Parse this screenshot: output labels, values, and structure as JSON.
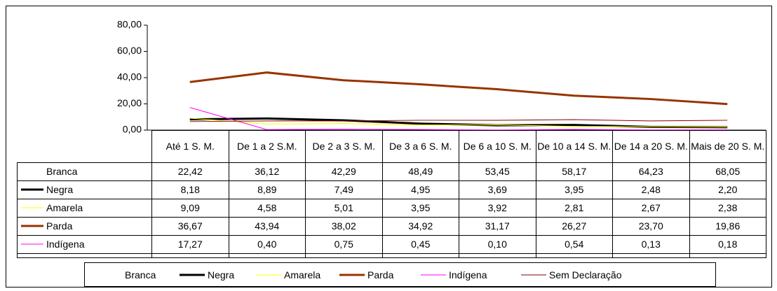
{
  "chart_data": {
    "type": "line",
    "categories": [
      "Até 1 S. M.",
      "De 1 a 2 S.M.",
      "De 2 a 3 S. M.",
      "De 3 a 6 S. M.",
      "De 6 a 10 S. M.",
      "De 10 a 14 S. M.",
      "De 14 a 20 S. M.",
      "Mais de 20 S. M."
    ],
    "ylim": [
      0,
      80
    ],
    "yticks": [
      {
        "value": 0,
        "label": "0,00"
      },
      {
        "value": 20,
        "label": "20,00"
      },
      {
        "value": 40,
        "label": "40,00"
      },
      {
        "value": 60,
        "label": "60,00"
      },
      {
        "value": 80,
        "label": "80,00"
      }
    ],
    "series": [
      {
        "name": "Branca",
        "color": "#ffffff",
        "line_width": 1,
        "values": [
          22.42,
          36.12,
          42.29,
          48.49,
          53.45,
          58.17,
          64.23,
          68.05
        ],
        "value_labels": [
          "22,42",
          "36,12",
          "42,29",
          "48,49",
          "53,45",
          "58,17",
          "64,23",
          "68,05"
        ]
      },
      {
        "name": "Negra",
        "color": "#000000",
        "line_width": 3,
        "values": [
          8.18,
          8.89,
          7.49,
          4.95,
          3.69,
          3.95,
          2.48,
          2.2
        ],
        "value_labels": [
          "8,18",
          "8,89",
          "7,49",
          "4,95",
          "3,69",
          "3,95",
          "2,48",
          "2,20"
        ]
      },
      {
        "name": "Amarela",
        "color": "#ffff00",
        "line_width": 1,
        "values": [
          9.09,
          4.58,
          5.01,
          3.95,
          3.92,
          2.81,
          2.67,
          2.38
        ],
        "value_labels": [
          "9,09",
          "4,58",
          "5,01",
          "3,95",
          "3,92",
          "2,81",
          "2,67",
          "2,38"
        ]
      },
      {
        "name": "Parda",
        "color": "#993300",
        "line_width": 3,
        "values": [
          36.67,
          43.94,
          38.02,
          34.92,
          31.17,
          26.27,
          23.7,
          19.86
        ],
        "value_labels": [
          "36,67",
          "43,94",
          "38,02",
          "34,92",
          "31,17",
          "26,27",
          "23,70",
          "19,86"
        ]
      },
      {
        "name": "Indígena",
        "color": "#ff00ff",
        "line_width": 1,
        "values": [
          17.27,
          0.4,
          0.75,
          0.45,
          0.1,
          0.54,
          0.13,
          0.18
        ],
        "value_labels": [
          "17,27",
          "0,40",
          "0,75",
          "0,45",
          "0,10",
          "0,54",
          "0,13",
          "0,18"
        ]
      },
      {
        "name": "Sem Declaração",
        "color": "#800000",
        "line_width": 1,
        "values": [
          6.5,
          7,
          7,
          7.5,
          7.5,
          8,
          7,
          7.5
        ]
      }
    ]
  }
}
